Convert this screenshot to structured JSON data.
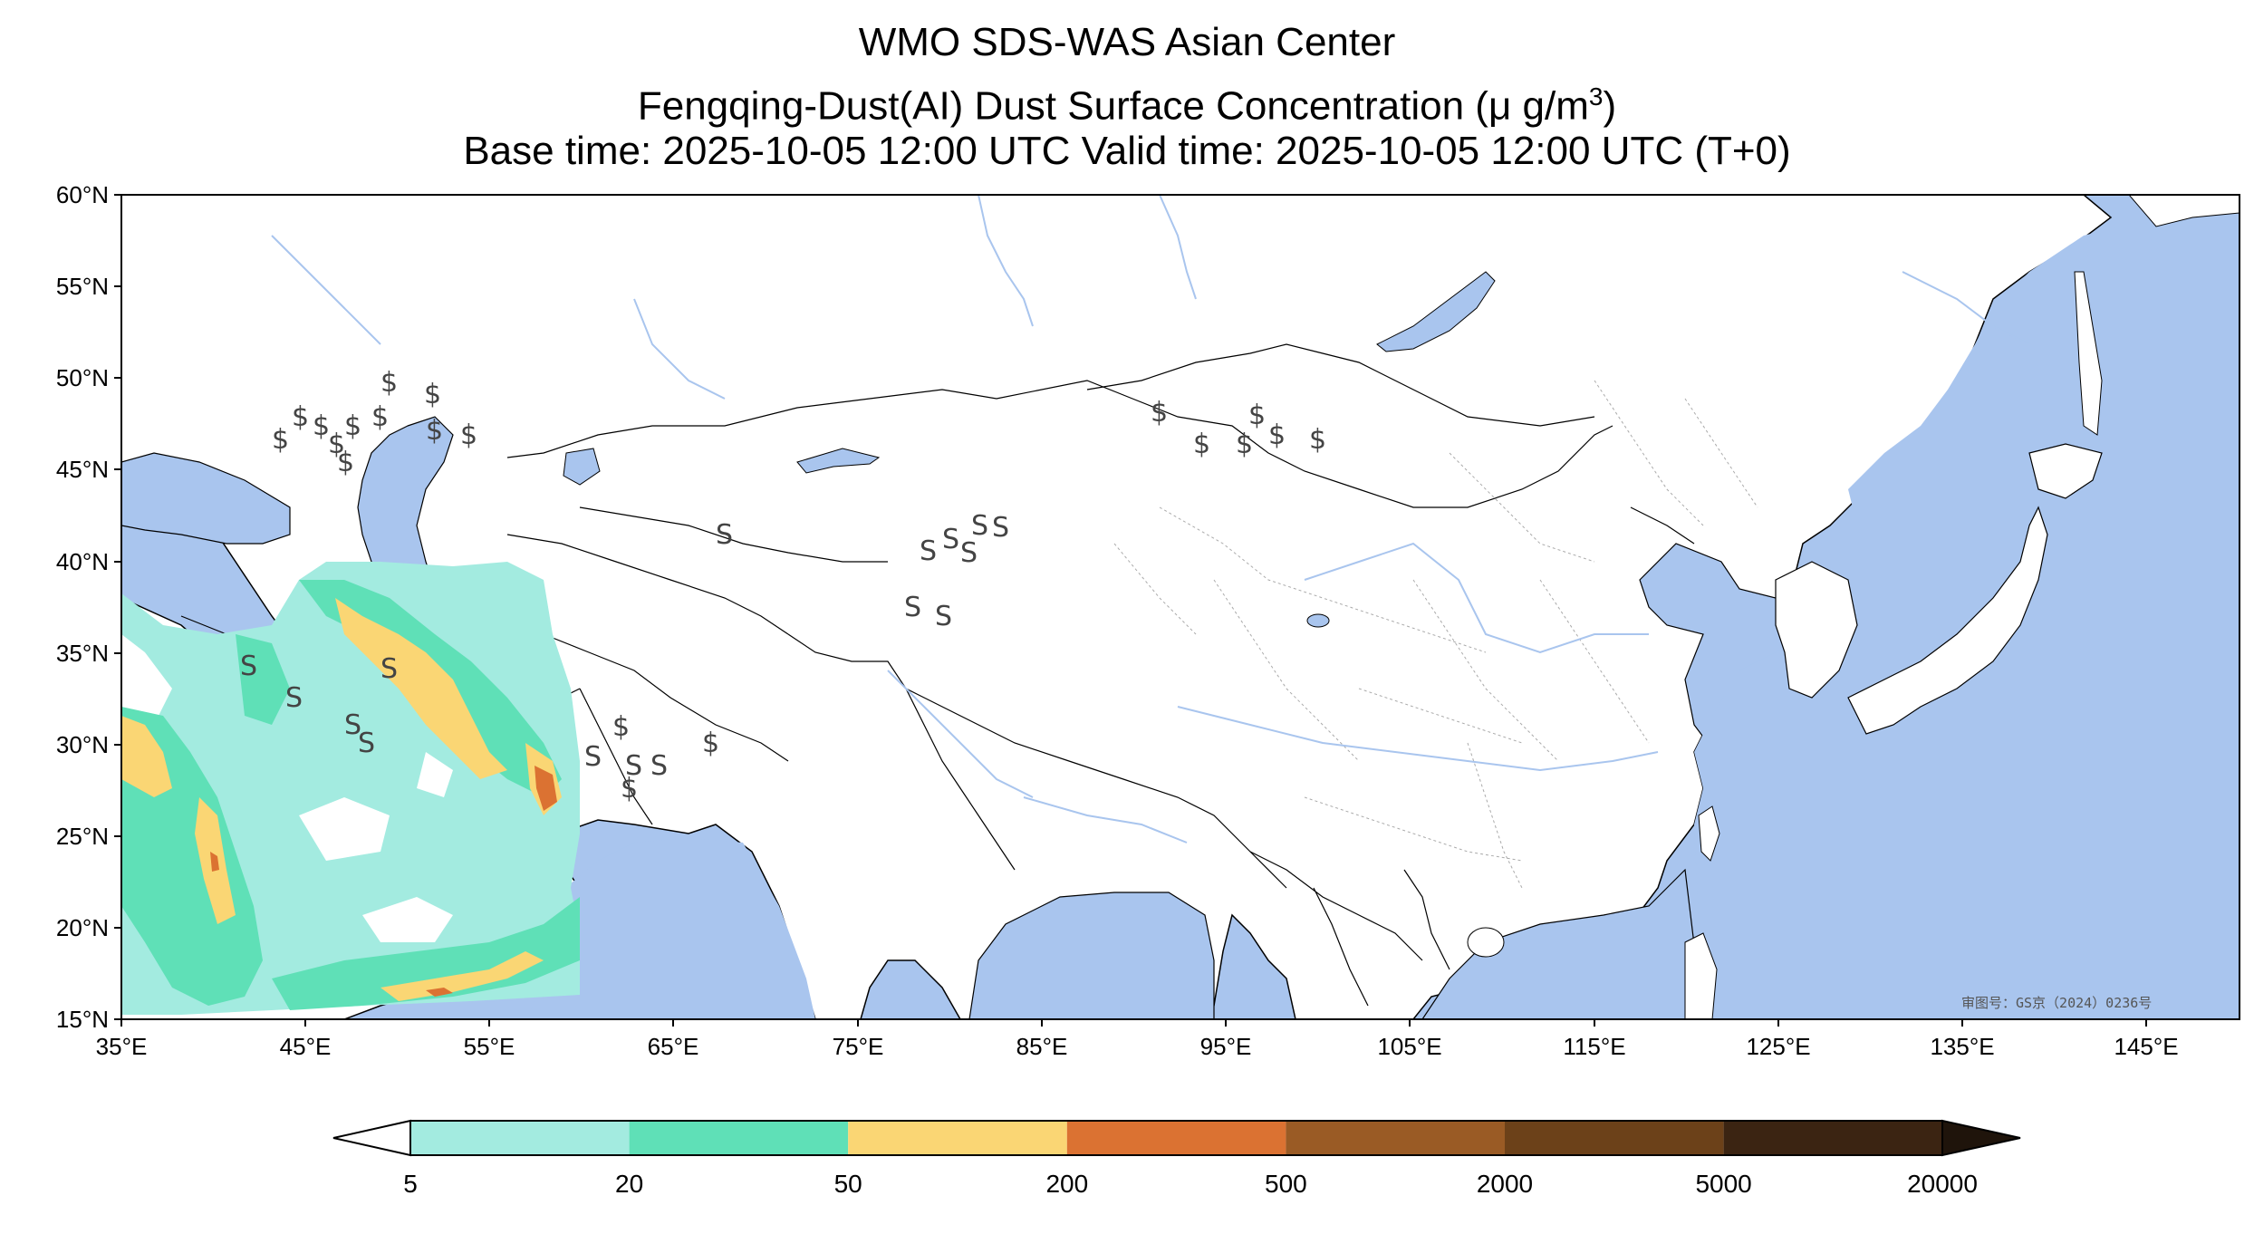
{
  "title": {
    "line1": "WMO SDS-WAS Asian Center",
    "line2_pre": "Fengqing-Dust(AI) Dust Surface Concentration (",
    "line2_mu": "μ",
    "line2_unit": " g/m",
    "line2_exp": "3",
    "line2_post": ")",
    "line3": "Base time: 2025-10-05 12:00 UTC Valid time: 2025-10-05 12:00 UTC (T+0)"
  },
  "map": {
    "lon_range": [
      35,
      150
    ],
    "lat_range": [
      15,
      60
    ],
    "ocean_color": "#a9c5ee",
    "land_color": "#ffffff",
    "lat_ticks": [
      "60°N",
      "55°N",
      "50°N",
      "45°N",
      "40°N",
      "35°N",
      "30°N",
      "25°N",
      "20°N",
      "15°N"
    ],
    "lon_ticks": [
      "35°E",
      "45°E",
      "55°E",
      "65°E",
      "75°E",
      "85°E",
      "95°E",
      "105°E",
      "115°E",
      "125°E",
      "135°E",
      "145°E"
    ],
    "stamp": "审图号：GS京（2024）0236号",
    "station_symbol": "$",
    "haze_symbol": "S"
  },
  "colorbar": {
    "levels": [
      "5",
      "20",
      "50",
      "200",
      "500",
      "2000",
      "5000",
      "20000"
    ],
    "colors": [
      "#a3ebe0",
      "#5fe0b7",
      "#fad674",
      "#db7232",
      "#9a5b25",
      "#6c4119",
      "#3b2412"
    ],
    "under_color": "#ffffff",
    "over_color": "#1f140b"
  }
}
